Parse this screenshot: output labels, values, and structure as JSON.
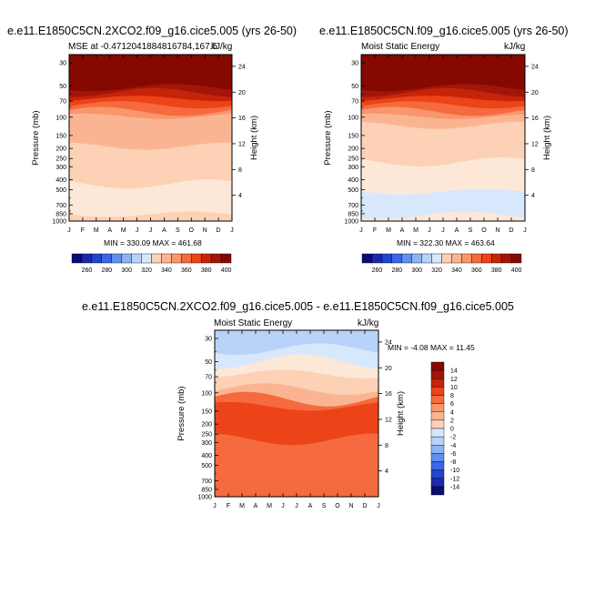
{
  "panels": [
    {
      "title": "e.e11.E1850C5CN.2XCO2.f09_g16.cice5.005 (yrs 26-50)",
      "left_label": "MSE at -0.4712041884816784,167.5",
      "right_label": "kJ/kg",
      "minmax": "MIN = 330.09 MAX = 461.68"
    },
    {
      "title": "e.e11.E1850C5CN.f09_g16.cice5.005 (yrs 26-50)",
      "left_label": "Moist Static Energy",
      "right_label": "kJ/kg",
      "minmax": "MIN = 322.30 MAX = 463.64"
    },
    {
      "title": "e.e11.E1850C5CN.2XCO2.f09_g16.cice5.005 - e.e11.E1850C5CN.f09_g16.cice5.005",
      "left_label": "Moist Static Energy",
      "right_label": "kJ/kg",
      "minmax": "MIN =  -4.08 MAX =  11.45"
    }
  ],
  "chart_data": [
    {
      "type": "heatmap",
      "title": "e.e11.E1850C5CN.2XCO2.f09_g16.cice5.005 (yrs 26-50)",
      "subtitle_left": "MSE at -0.4712041884816784,167.5",
      "units": "kJ/kg",
      "x": [
        "J",
        "F",
        "M",
        "A",
        "M",
        "J",
        "J",
        "A",
        "S",
        "O",
        "N",
        "D",
        "J"
      ],
      "ylabel": "Pressure (mb)",
      "yticks": [
        30,
        50,
        70,
        100,
        150,
        200,
        250,
        300,
        400,
        500,
        700,
        850,
        1000
      ],
      "y2label": "Height (km)",
      "y2ticks": [
        24,
        20,
        16,
        12,
        8,
        4
      ],
      "contour_levels": [
        260,
        270,
        280,
        290,
        300,
        310,
        320,
        330,
        340,
        350,
        360,
        370,
        380,
        390,
        400
      ],
      "colorbar_labels": [
        260,
        280,
        300,
        320,
        340,
        360,
        380,
        400
      ],
      "min": 330.09,
      "max": 461.68
    },
    {
      "type": "heatmap",
      "title": "e.e11.E1850C5CN.f09_g16.cice5.005 (yrs 26-50)",
      "subtitle_left": "Moist Static Energy",
      "units": "kJ/kg",
      "x": [
        "J",
        "F",
        "M",
        "A",
        "M",
        "J",
        "J",
        "A",
        "S",
        "O",
        "N",
        "D",
        "J"
      ],
      "ylabel": "Pressure (mb)",
      "yticks": [
        30,
        50,
        70,
        100,
        150,
        200,
        250,
        300,
        400,
        500,
        700,
        850,
        1000
      ],
      "y2label": "Height (km)",
      "y2ticks": [
        24,
        20,
        16,
        12,
        8,
        4
      ],
      "contour_levels": [
        260,
        270,
        280,
        290,
        300,
        310,
        320,
        330,
        340,
        350,
        360,
        370,
        380,
        390,
        400
      ],
      "colorbar_labels": [
        260,
        280,
        300,
        320,
        340,
        360,
        380,
        400
      ],
      "min": 322.3,
      "max": 463.64
    },
    {
      "type": "heatmap",
      "title": "e.e11.E1850C5CN.2XCO2.f09_g16.cice5.005 - e.e11.E1850C5CN.f09_g16.cice5.005",
      "subtitle_left": "Moist Static Energy",
      "units": "kJ/kg",
      "x": [
        "J",
        "F",
        "M",
        "A",
        "M",
        "J",
        "J",
        "A",
        "S",
        "O",
        "N",
        "D",
        "J"
      ],
      "ylabel": "Pressure (mb)",
      "yticks": [
        30,
        50,
        70,
        100,
        150,
        200,
        250,
        300,
        400,
        500,
        700,
        850,
        1000
      ],
      "y2label": "Height (km)",
      "y2ticks": [
        24,
        20,
        16,
        12,
        8,
        4
      ],
      "contour_levels": [
        -14,
        -12,
        -10,
        -8,
        -6,
        -4,
        -2,
        0,
        2,
        4,
        6,
        8,
        10,
        12,
        14
      ],
      "colorbar_labels": [
        14,
        12,
        10,
        8,
        6,
        4,
        2,
        0,
        -2,
        -4,
        -6,
        -8,
        -10,
        -12,
        -14
      ],
      "min": -4.08,
      "max": 11.45
    }
  ],
  "colors": {
    "palette": [
      "#0c0c74",
      "#1e28aa",
      "#2344cc",
      "#3a67e6",
      "#5f8ff0",
      "#8eb3f4",
      "#b8d2f8",
      "#d8e8fc",
      "#fde8d7",
      "#fcd1b6",
      "#fbb491",
      "#f9966c",
      "#f56a3e",
      "#ec4318",
      "#c62409",
      "#a2160a",
      "#850900"
    ],
    "panel1_bands": [
      {
        "p_top": 25,
        "p_bot": 52,
        "color": "#850900"
      },
      {
        "p_top": 52,
        "p_bot": 58,
        "color": "#a2160a"
      },
      {
        "p_top": 58,
        "p_bot": 66,
        "color": "#c62409"
      },
      {
        "p_top": 66,
        "p_bot": 76,
        "color": "#ec4318"
      },
      {
        "p_top": 76,
        "p_bot": 88,
        "color": "#f56a3e"
      },
      {
        "p_top": 88,
        "p_bot": 98,
        "color": "#f9966c"
      },
      {
        "p_top": 98,
        "p_bot": 190,
        "color": "#fbb491"
      },
      {
        "p_top": 190,
        "p_bot": 440,
        "color": "#fcd1b6"
      },
      {
        "p_top": 440,
        "p_bot": 860,
        "color": "#fde8d7"
      },
      {
        "p_top": 860,
        "p_bot": 1000,
        "color": "#fcd1b6"
      }
    ],
    "panel2_bands": [
      {
        "p_top": 25,
        "p_bot": 52,
        "color": "#850900"
      },
      {
        "p_top": 52,
        "p_bot": 58,
        "color": "#a2160a"
      },
      {
        "p_top": 58,
        "p_bot": 66,
        "color": "#c62409"
      },
      {
        "p_top": 66,
        "p_bot": 76,
        "color": "#ec4318"
      },
      {
        "p_top": 76,
        "p_bot": 88,
        "color": "#f56a3e"
      },
      {
        "p_top": 88,
        "p_bot": 98,
        "color": "#f9966c"
      },
      {
        "p_top": 98,
        "p_bot": 120,
        "color": "#fbb491"
      },
      {
        "p_top": 120,
        "p_bot": 270,
        "color": "#fcd1b6"
      },
      {
        "p_top": 270,
        "p_bot": 520,
        "color": "#fde8d7"
      },
      {
        "p_top": 520,
        "p_bot": 880,
        "color": "#d8e8fc"
      },
      {
        "p_top": 880,
        "p_bot": 1000,
        "color": "#fde8d7"
      }
    ],
    "panel3_bands": [
      {
        "p_top": 25,
        "p_bot": 38,
        "color": "#b8d2f8"
      },
      {
        "p_top": 38,
        "p_bot": 50,
        "color": "#d8e8fc"
      },
      {
        "p_top": 50,
        "p_bot": 66,
        "color": "#fde8d7"
      },
      {
        "p_top": 66,
        "p_bot": 92,
        "color": "#fcd1b6"
      },
      {
        "p_top": 92,
        "p_bot": 115,
        "color": "#fbb491"
      },
      {
        "p_top": 115,
        "p_bot": 135,
        "color": "#f56a3e"
      },
      {
        "p_top": 135,
        "p_bot": 280,
        "color": "#ec4318"
      },
      {
        "p_top": 280,
        "p_bot": 1000,
        "color": "#f56a3e"
      }
    ]
  }
}
